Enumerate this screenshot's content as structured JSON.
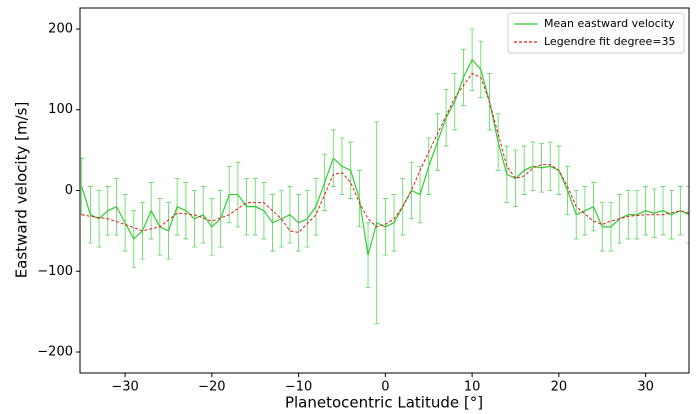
{
  "chart_data": {
    "type": "line",
    "xlabel": "Planetocentric Latitude [°]",
    "ylabel": "Eastward velocity [m/s]",
    "xlim": [
      -35.2,
      35
    ],
    "ylim": [
      -226,
      226
    ],
    "xticks": [
      {
        "value": -30,
        "label": "−30"
      },
      {
        "value": -20,
        "label": "−20"
      },
      {
        "value": -10,
        "label": "−10"
      },
      0,
      10,
      20,
      30
    ],
    "yticks": [
      {
        "value": -200,
        "label": "−200"
      },
      {
        "value": -100,
        "label": "−100"
      },
      0,
      100,
      200
    ],
    "legend": "upper right",
    "series": [
      {
        "name": "Mean eastward velocity",
        "color": "#33cc33",
        "linestyle": "solid",
        "x": [
          -35,
          -34,
          -33,
          -32,
          -31,
          -30,
          -29,
          -28,
          -27,
          -26,
          -25,
          -24,
          -23,
          -22,
          -21,
          -20,
          -19,
          -18,
          -17,
          -16,
          -15,
          -14,
          -13,
          -12,
          -11,
          -10,
          -9,
          -8,
          -7,
          -6,
          -5,
          -4,
          -3,
          -2,
          -1,
          0,
          1,
          2,
          3,
          4,
          5,
          6,
          7,
          8,
          9,
          10,
          11,
          12,
          13,
          14,
          15,
          16,
          17,
          18,
          19,
          20,
          21,
          22,
          23,
          24,
          25,
          26,
          27,
          28,
          29,
          30,
          31,
          32,
          33,
          34,
          35
        ],
        "values": [
          5,
          -30,
          -35,
          -25,
          -20,
          -40,
          -60,
          -50,
          -25,
          -45,
          -50,
          -20,
          -25,
          -35,
          -30,
          -45,
          -35,
          -5,
          -5,
          -20,
          -20,
          -25,
          -40,
          -35,
          -30,
          -40,
          -35,
          -20,
          10,
          40,
          30,
          25,
          -10,
          -80,
          -40,
          -45,
          -40,
          -20,
          0,
          -5,
          30,
          60,
          90,
          110,
          140,
          162,
          150,
          110,
          60,
          20,
          15,
          25,
          30,
          28,
          30,
          25,
          0,
          -30,
          -25,
          -20,
          -45,
          -45,
          -35,
          -30,
          -30,
          -25,
          -28,
          -25,
          -30,
          -25,
          -30
        ],
        "errors": [
          35,
          35,
          35,
          30,
          35,
          35,
          35,
          35,
          35,
          35,
          35,
          35,
          35,
          35,
          35,
          35,
          35,
          35,
          40,
          35,
          35,
          35,
          35,
          35,
          35,
          35,
          35,
          35,
          35,
          35,
          35,
          35,
          35,
          40,
          125,
          35,
          35,
          35,
          35,
          35,
          35,
          35,
          35,
          35,
          35,
          38,
          35,
          35,
          35,
          35,
          35,
          30,
          30,
          30,
          30,
          30,
          30,
          30,
          30,
          30,
          30,
          30,
          30,
          30,
          30,
          30,
          30,
          30,
          30,
          30,
          35
        ]
      },
      {
        "name": "Legendre fit degree=35",
        "color": "#e41a1c",
        "linestyle": "dashed",
        "x": [
          -35,
          -34,
          -32,
          -30,
          -28,
          -26,
          -24,
          -22,
          -20,
          -18,
          -16,
          -14,
          -12,
          -11,
          -10,
          -8,
          -6,
          -5,
          -4,
          -3,
          -2,
          -1,
          0,
          1,
          2,
          3,
          4,
          6,
          8,
          10,
          11,
          12,
          13,
          14,
          15,
          16,
          17,
          18,
          19,
          20,
          21,
          22,
          24,
          25,
          26,
          28,
          30,
          32,
          34,
          35
        ],
        "values": [
          -30,
          -32,
          -35,
          -42,
          -50,
          -45,
          -28,
          -30,
          -38,
          -30,
          -15,
          -15,
          -35,
          -50,
          -52,
          -30,
          20,
          22,
          10,
          -15,
          -35,
          -45,
          -42,
          -35,
          -20,
          0,
          25,
          70,
          115,
          145,
          140,
          110,
          70,
          30,
          15,
          18,
          28,
          32,
          32,
          25,
          5,
          -20,
          -38,
          -42,
          -38,
          -32,
          -30,
          -30,
          -25,
          -28
        ]
      }
    ]
  }
}
